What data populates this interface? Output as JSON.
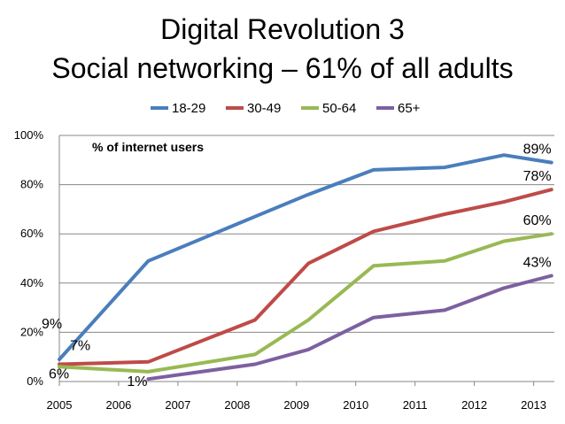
{
  "slide": {
    "title_line1": "Digital Revolution 3",
    "title_line2": "Social networking – 61% of all adults"
  },
  "chart_data": {
    "type": "line",
    "title": "Social networking – 61% of all adults",
    "note": "% of internet users",
    "xlabel": "",
    "ylabel": "",
    "xlim": [
      2005,
      2013.35
    ],
    "ylim": [
      0,
      100
    ],
    "x_ticks": [
      2005,
      2006,
      2007,
      2008,
      2009,
      2010,
      2011,
      2012,
      2013
    ],
    "y_ticks": [
      0,
      20,
      40,
      60,
      80,
      100
    ],
    "y_tick_labels": [
      "0%",
      "20%",
      "40%",
      "60%",
      "80%",
      "100%"
    ],
    "grid": "horizontal",
    "legend_position": "top",
    "series": [
      {
        "name": "18-29",
        "color": "#4a7ebb",
        "points": [
          [
            2005,
            9
          ],
          [
            2006.5,
            49
          ],
          [
            2008.3,
            67
          ],
          [
            2009.2,
            76
          ],
          [
            2010.3,
            86
          ],
          [
            2011.5,
            87
          ],
          [
            2012.5,
            92
          ],
          [
            2013.3,
            89
          ]
        ]
      },
      {
        "name": "30-49",
        "color": "#be4b48",
        "points": [
          [
            2005,
            7
          ],
          [
            2006.5,
            8
          ],
          [
            2008.3,
            25
          ],
          [
            2009.2,
            48
          ],
          [
            2010.3,
            61
          ],
          [
            2011.5,
            68
          ],
          [
            2012.5,
            73
          ],
          [
            2013.3,
            78
          ]
        ]
      },
      {
        "name": "50-64",
        "color": "#98b954",
        "points": [
          [
            2005,
            6
          ],
          [
            2006.5,
            4
          ],
          [
            2008.3,
            11
          ],
          [
            2009.2,
            25
          ],
          [
            2010.3,
            47
          ],
          [
            2011.5,
            49
          ],
          [
            2012.5,
            57
          ],
          [
            2013.3,
            60
          ]
        ]
      },
      {
        "name": "65+",
        "color": "#7d60a0",
        "points": [
          [
            2006.5,
            1
          ],
          [
            2008.3,
            7
          ],
          [
            2009.2,
            13
          ],
          [
            2010.3,
            26
          ],
          [
            2011.5,
            29
          ],
          [
            2012.5,
            38
          ],
          [
            2013.3,
            43
          ]
        ]
      }
    ],
    "annotations": [
      {
        "id": "start-18-29",
        "text": "9%",
        "x": 2005,
        "y": 9
      },
      {
        "id": "start-30-49",
        "text": "7%",
        "x": 2005,
        "y": 7
      },
      {
        "id": "start-50-64",
        "text": "6%",
        "x": 2005,
        "y": 6
      },
      {
        "id": "start-65-plus",
        "text": "1%",
        "x": 2006.5,
        "y": 1
      },
      {
        "id": "end-18-29",
        "text": "89%",
        "x": 2013.3,
        "y": 89
      },
      {
        "id": "end-30-49",
        "text": "78%",
        "x": 2013.3,
        "y": 78
      },
      {
        "id": "end-50-64",
        "text": "60%",
        "x": 2013.3,
        "y": 60
      },
      {
        "id": "end-65-plus",
        "text": "43%",
        "x": 2013.3,
        "y": 43
      }
    ]
  }
}
